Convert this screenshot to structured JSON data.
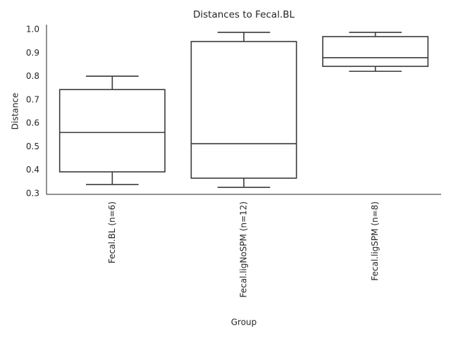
{
  "chart_data": {
    "type": "box",
    "title": "Distances to Fecal.BL",
    "x_label": "Group",
    "y_label": "Distance",
    "categories": [
      "Fecal.BL (n=6)",
      "Fecal.ligNoSPM (n=12)",
      "Fecal.ligSPM (n=8)"
    ],
    "boxes": [
      {
        "whislo": 0.339,
        "q1": 0.393,
        "med": 0.561,
        "q3": 0.744,
        "whishi": 0.801
      },
      {
        "whislo": 0.327,
        "q1": 0.366,
        "med": 0.513,
        "q3": 0.949,
        "whishi": 0.988
      },
      {
        "whislo": 0.822,
        "q1": 0.843,
        "med": 0.88,
        "q3": 0.97,
        "whishi": 0.988
      }
    ],
    "fill": "#ffffff",
    "edgecolor": "#3a3a3a",
    "ylim": [
      0.297,
      1.021
    ],
    "yticks": [
      0.3,
      0.4,
      0.5,
      0.6,
      0.7,
      0.8,
      0.9,
      {
        "value": 1,
        "label": "1.0"
      }
    ],
    "grid": false
  }
}
